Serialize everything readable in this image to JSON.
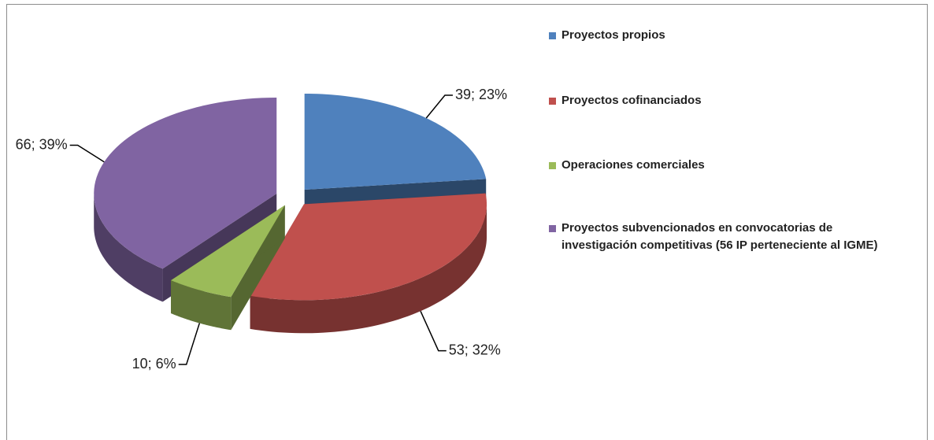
{
  "chart_data": {
    "type": "pie",
    "categories": [
      "Proyectos propios",
      "Proyectos cofinanciados",
      "Operaciones comerciales",
      "Proyectos subvencionados en convocatorias de investigación competitivas (56 IP perteneciente al IGME)"
    ],
    "values": [
      39,
      53,
      10,
      66
    ],
    "value_labels": [
      "39; 23%",
      "53; 32%",
      "10; 6%",
      "66; 39%"
    ],
    "colors": [
      "#4f81bd",
      "#c0504d",
      "#9bbb59",
      "#8064a2"
    ],
    "legend": "right"
  }
}
